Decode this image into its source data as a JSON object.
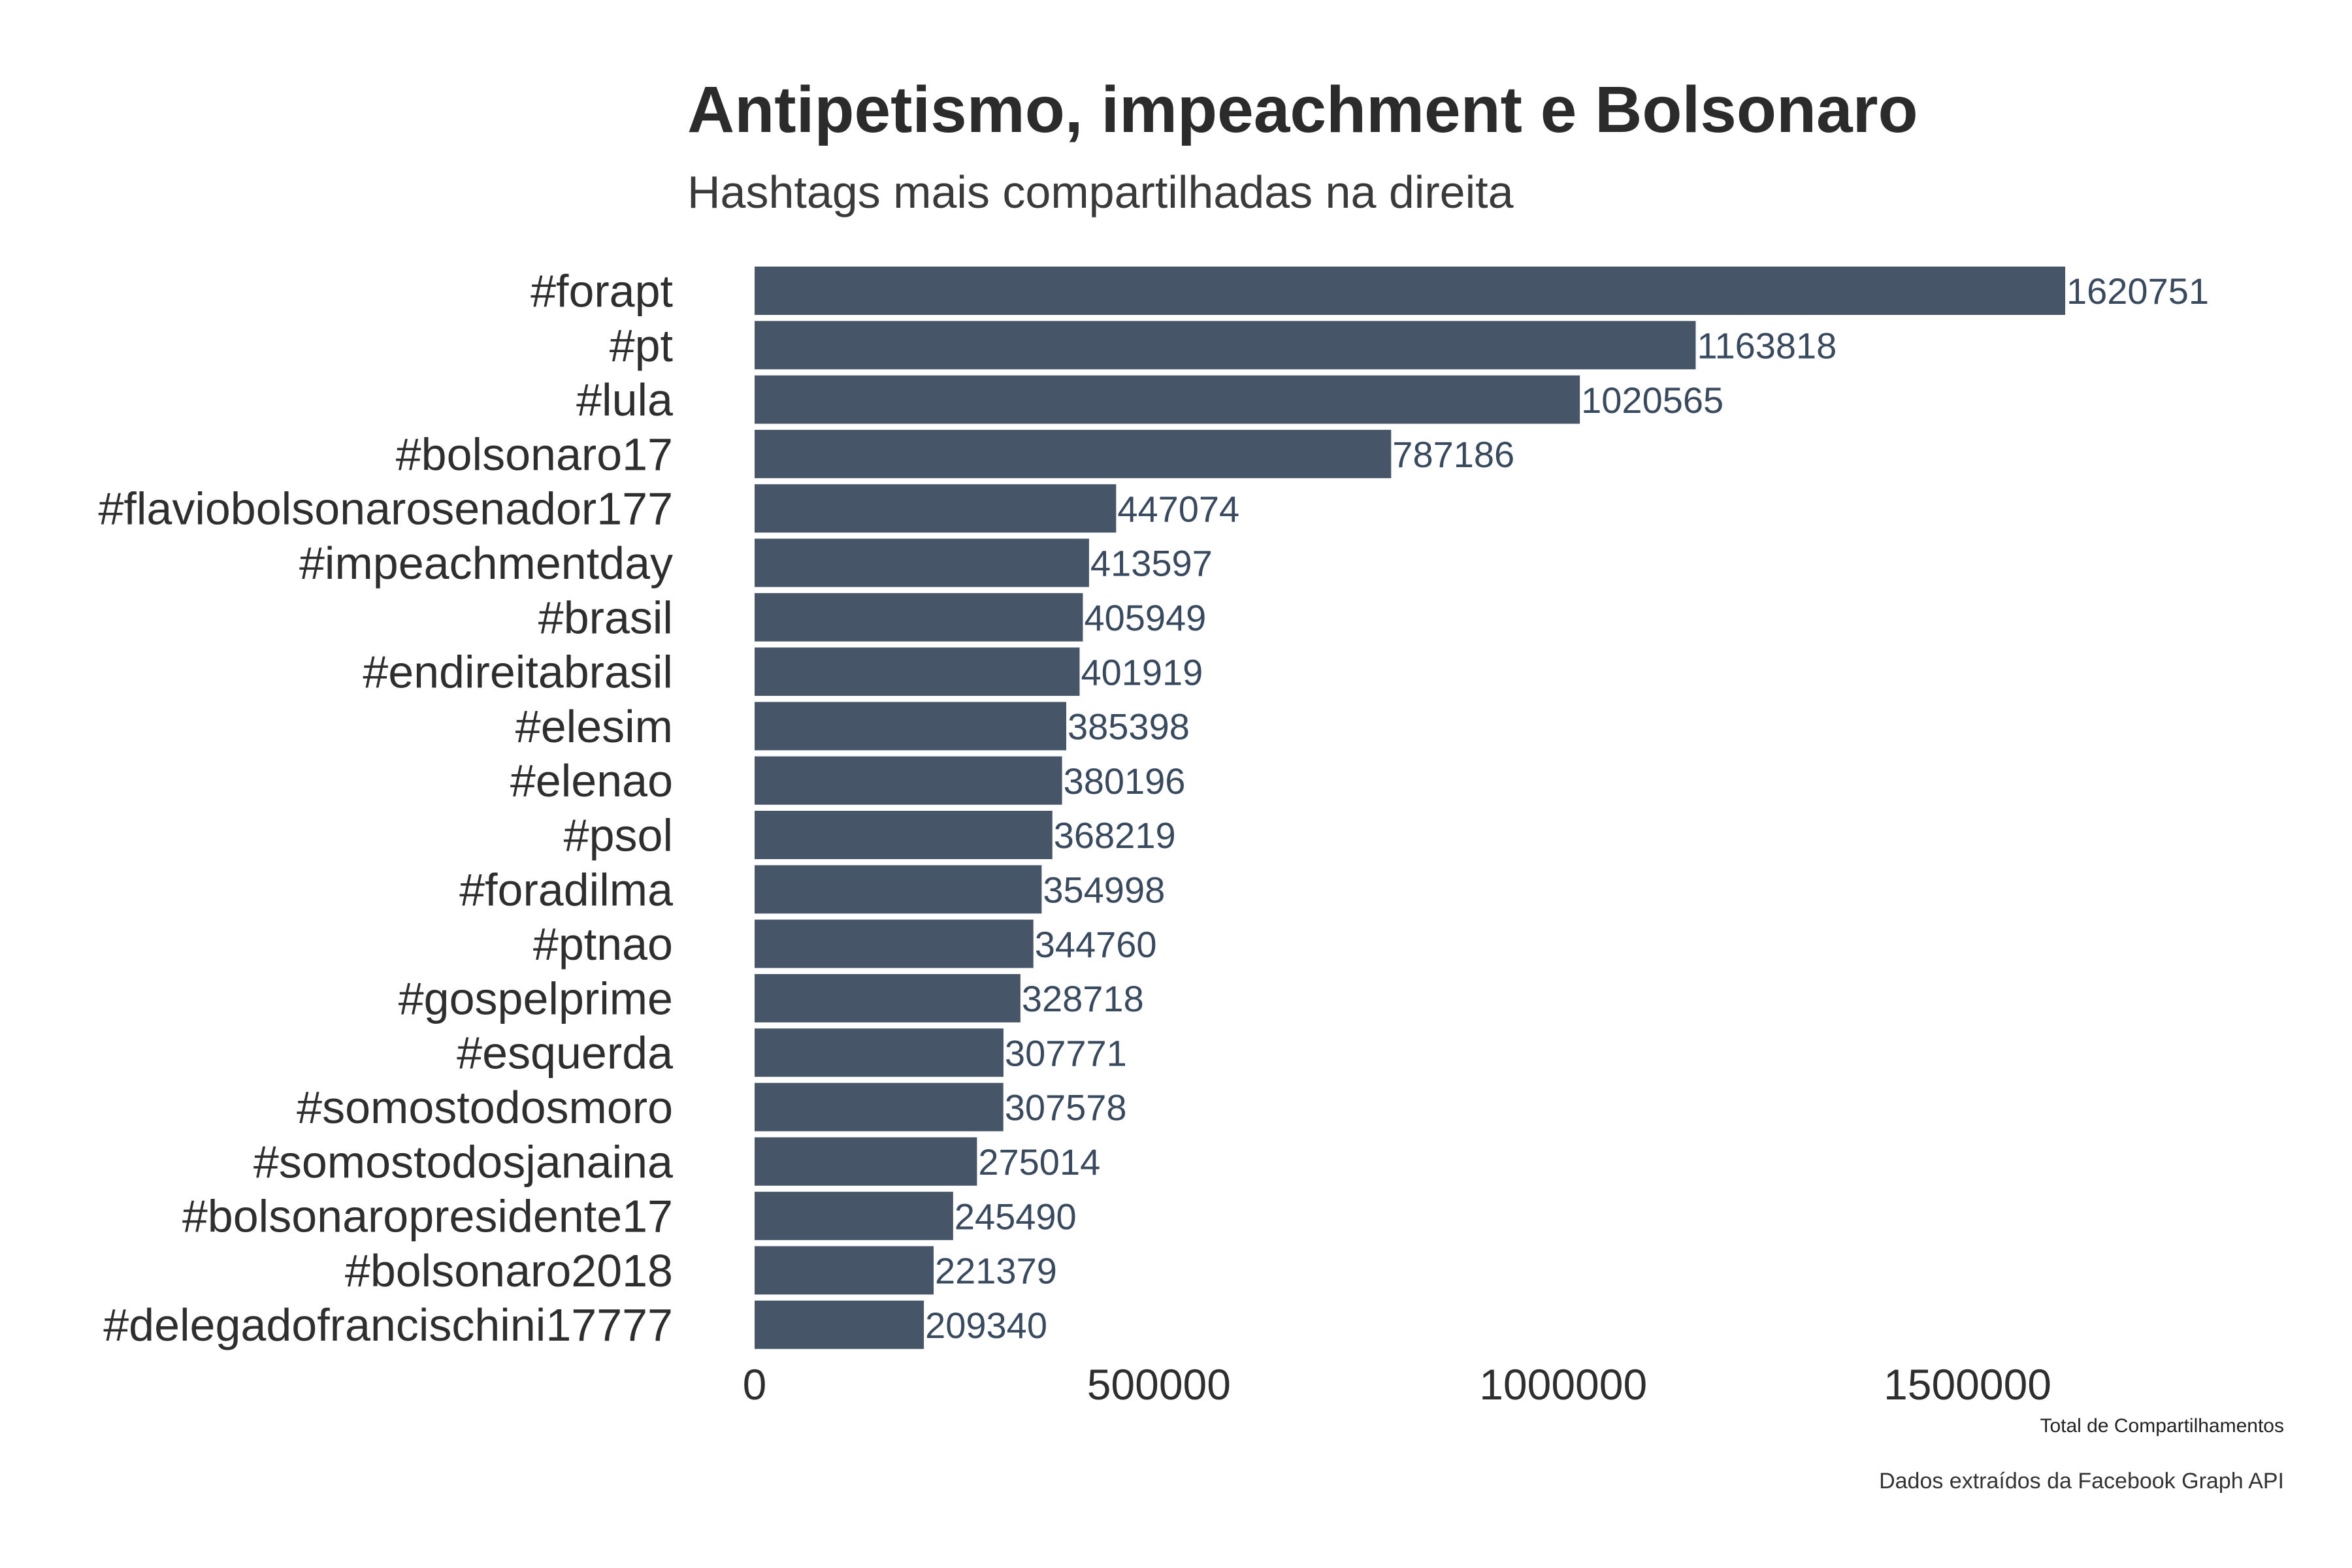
{
  "chart_data": {
    "type": "bar",
    "orientation": "horizontal",
    "title": "Antipetismo, impeachment e Bolsonaro",
    "subtitle": "Hashtags mais compartilhadas na direita",
    "xlabel": "Total de Compartilhamentos",
    "ylabel": "",
    "caption": "Dados extraídos da Facebook Graph API",
    "xlim": [
      0,
      1750000
    ],
    "xticks": [
      0,
      500000,
      1000000,
      1500000
    ],
    "xtick_labels": [
      "0",
      "500000",
      "1000000",
      "1500000"
    ],
    "grid": false,
    "legend": "none",
    "bar_color": "#465568",
    "label_color": "#3a4a5e",
    "categories": [
      "#forapt",
      "#pt",
      "#lula",
      "#bolsonaro17",
      "#flaviobolsonarosenador177",
      "#impeachmentday",
      "#brasil",
      "#endireitabrasil",
      "#elesim",
      "#elenao",
      "#psol",
      "#foradilma",
      "#ptnao",
      "#gospelprime",
      "#esquerda",
      "#somostodosmoro",
      "#somostodosjanaina",
      "#bolsonaropresidente17",
      "#bolsonaro2018",
      "#delegadofrancischini17777"
    ],
    "values": [
      1620751,
      1163818,
      1020565,
      787186,
      447074,
      413597,
      405949,
      401919,
      385398,
      380196,
      368219,
      354998,
      344760,
      328718,
      307771,
      307578,
      275014,
      245490,
      221379,
      209340
    ],
    "value_labels": [
      "1620751",
      "1163818",
      "1020565",
      "787186",
      "447074",
      "413597",
      "405949",
      "401919",
      "385398",
      "380196",
      "368219",
      "354998",
      "344760",
      "328718",
      "307771",
      "307578",
      "275014",
      "245490",
      "221379",
      "209340"
    ]
  }
}
